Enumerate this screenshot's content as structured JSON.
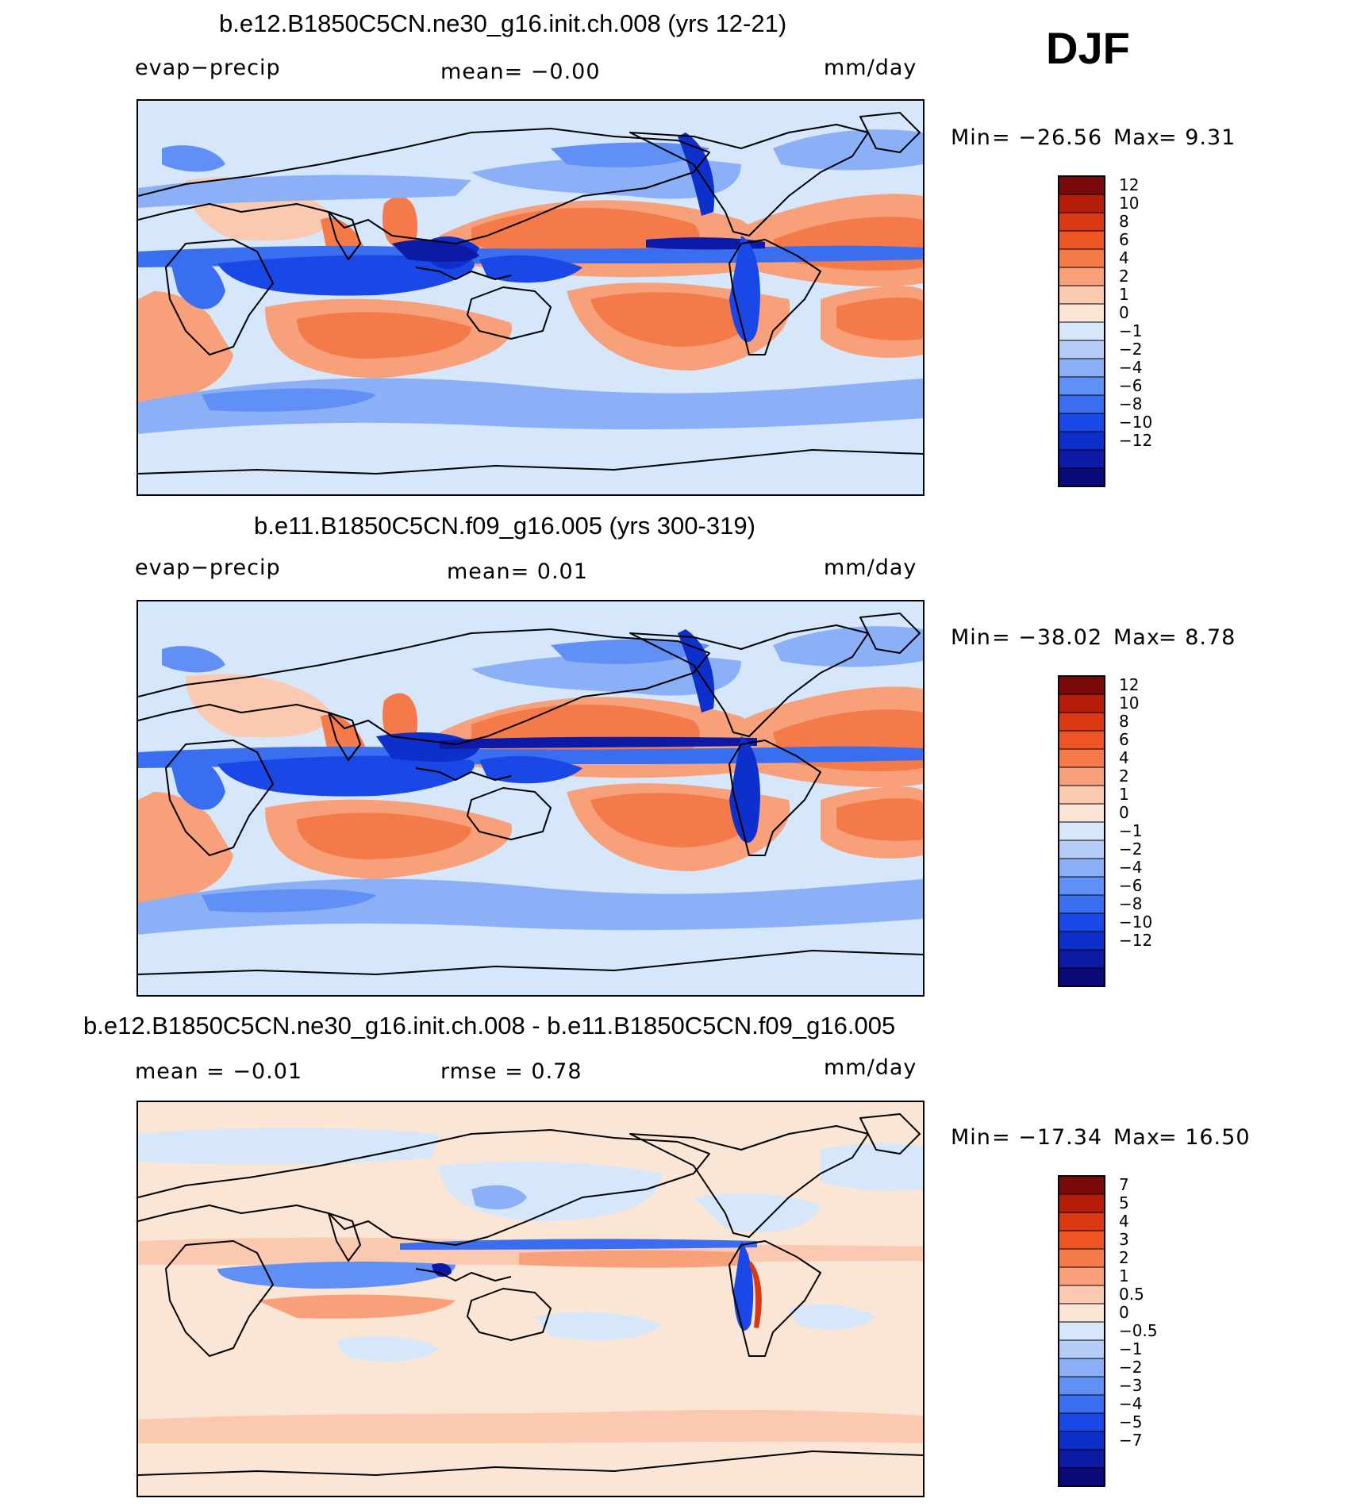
{
  "season": "DJF",
  "colors": {
    "land_coast": "#000000",
    "frame": "#000000",
    "main_scale": [
      "#0a0a78",
      "#0d1aa6",
      "#0d2fcc",
      "#1a48e6",
      "#3a6ef0",
      "#6090f5",
      "#8cb0f7",
      "#b6cdf8",
      "#d6e6fb",
      "#fbe6d6",
      "#fbc9b0",
      "#f8a07a",
      "#f47a4a",
      "#ee5524",
      "#d93812",
      "#b51c0a",
      "#7a0a0a"
    ],
    "diff_scale": [
      "#0a0a78",
      "#0d1aa6",
      "#0d2fcc",
      "#1a48e6",
      "#3a6ef0",
      "#6090f5",
      "#8cb0f7",
      "#b6cdf8",
      "#d6e6fb",
      "#fbe6d6",
      "#fbc9b0",
      "#f8a07a",
      "#f47a4a",
      "#ee5524",
      "#d93812",
      "#b51c0a",
      "#7a0a0a"
    ]
  },
  "panels": [
    {
      "title": "b.e12.B1850C5CN.ne30_g16.init.ch.008 (yrs 12-21)",
      "left_label": "evap−precip",
      "center_label": "mean=   −0.00",
      "right_label": "mm/day",
      "min_label": "Min",
      "min_value": "= −26.56",
      "max_label": "Max",
      "max_value": "=    9.31",
      "colorbar_labels": [
        "12",
        "10",
        "8",
        "6",
        "4",
        "2",
        "1",
        "0",
        "−1",
        "−2",
        "−4",
        "−6",
        "−8",
        "−10",
        "−12"
      ]
    },
    {
      "title": "b.e11.B1850C5CN.f09_g16.005 (yrs 300-319)",
      "left_label": "evap−precip",
      "center_label": "mean=    0.01",
      "right_label": "mm/day",
      "min_label": "Min",
      "min_value": "= −38.02",
      "max_label": "Max",
      "max_value": "=    8.78",
      "colorbar_labels": [
        "12",
        "10",
        "8",
        "6",
        "4",
        "2",
        "1",
        "0",
        "−1",
        "−2",
        "−4",
        "−6",
        "−8",
        "−10",
        "−12"
      ]
    },
    {
      "title": "b.e12.B1850C5CN.ne30_g16.init.ch.008 - b.e11.B1850C5CN.f09_g16.005",
      "left_label": "mean =   −0.01",
      "center_label": "rmse =    0.78",
      "right_label": "mm/day",
      "min_label": "Min",
      "min_value": "= −17.34",
      "max_label": "Max",
      "max_value": "=   16.50",
      "colorbar_labels": [
        "7",
        "5",
        "4",
        "3",
        "2",
        "1",
        "0.5",
        "0",
        "−0.5",
        "−1",
        "−2",
        "−3",
        "−4",
        "−5",
        "−7"
      ]
    }
  ]
}
